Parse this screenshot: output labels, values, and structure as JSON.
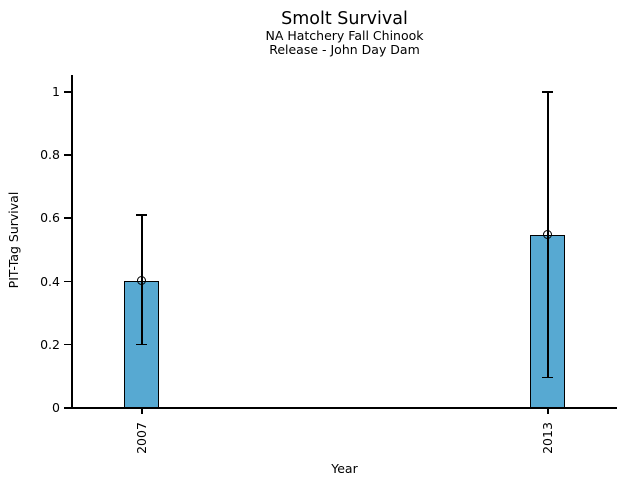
{
  "chart_data": {
    "type": "bar",
    "title": "Smolt Survival",
    "subtitle_lines": [
      "NA Hatchery Fall Chinook",
      "Release - John Day Dam"
    ],
    "xlabel": "Year",
    "ylabel": "PIT-Tag Survival",
    "categories": [
      "2007",
      "2013"
    ],
    "series": [
      {
        "name": "PIT-Tag Survival",
        "values": [
          0.4,
          0.545
        ],
        "error_low": [
          0.2,
          0.095
        ],
        "error_high": [
          0.61,
          1.0
        ]
      }
    ],
    "y_ticks": [
      0,
      0.2,
      0.4,
      0.6,
      0.8,
      1
    ],
    "y_tick_labels": [
      "0",
      "0.2",
      "0.4",
      "0.6",
      "0.8",
      "1"
    ],
    "ylim": [
      0,
      1.05
    ],
    "grid": false,
    "legend_position": "none",
    "marker": "open-circle",
    "colors": {
      "bar_fill": "#57A9D2",
      "bar_border": "#000000",
      "axis": "#000000",
      "text": "#000000",
      "background": "#FFFFFF"
    }
  }
}
